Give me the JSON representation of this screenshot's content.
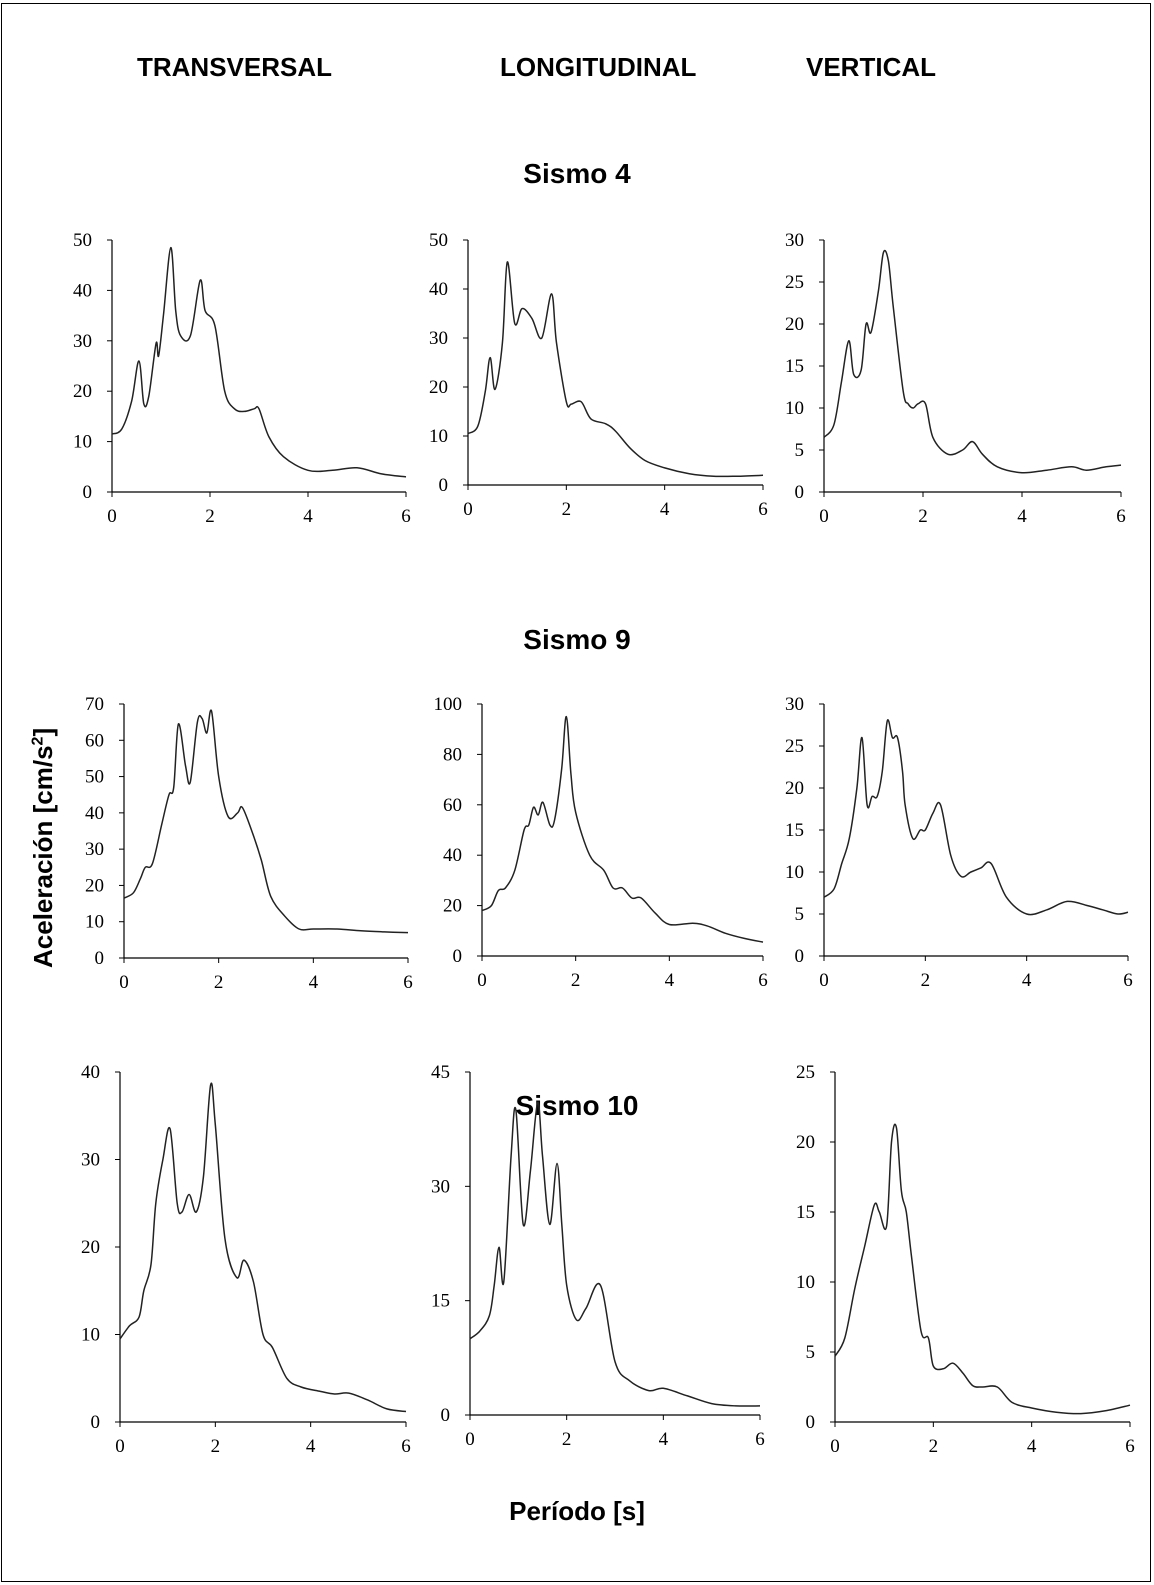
{
  "headers": {
    "col1": "TRANSVERSAL",
    "col2": "LONGITUDINAL",
    "col3": "VERTICAL"
  },
  "rows": [
    "Sismo 4",
    "Sismo 9",
    "Sismo 10"
  ],
  "ylabel_text": "Aceleración [cm/s",
  "ylabel_sup": "2",
  "ylabel_tail": "]",
  "xlabel": "Período [s]",
  "chart_data": [
    {
      "type": "line",
      "row": "Sismo 4",
      "component": "TRANSVERSAL",
      "xlim": [
        0,
        6
      ],
      "ylim": [
        0,
        50
      ],
      "yticks": [
        0,
        10,
        20,
        30,
        40,
        50
      ],
      "xticks": [
        0,
        2,
        4,
        6
      ],
      "x": [
        0,
        0.2,
        0.4,
        0.55,
        0.65,
        0.75,
        0.9,
        0.95,
        1.05,
        1.2,
        1.3,
        1.4,
        1.6,
        1.8,
        1.9,
        2.1,
        2.3,
        2.5,
        2.7,
        2.9,
        3.0,
        3.2,
        3.5,
        4.0,
        4.5,
        5.0,
        5.5,
        6.0
      ],
      "y": [
        11.5,
        12.5,
        18,
        26,
        17.5,
        19,
        29.5,
        27,
        35,
        48.5,
        36,
        31,
        31,
        42,
        36,
        33,
        20,
        16.5,
        16,
        16.5,
        16.5,
        11,
        7,
        4.3,
        4.3,
        4.8,
        3.6,
        3
      ]
    },
    {
      "type": "line",
      "row": "Sismo 4",
      "component": "LONGITUDINAL",
      "xlim": [
        0,
        6
      ],
      "ylim": [
        0,
        50
      ],
      "yticks": [
        0,
        10,
        20,
        30,
        40,
        50
      ],
      "xticks": [
        0,
        2,
        4,
        6
      ],
      "x": [
        0,
        0.2,
        0.35,
        0.45,
        0.55,
        0.7,
        0.8,
        0.95,
        1.1,
        1.3,
        1.5,
        1.7,
        1.8,
        2.0,
        2.1,
        2.3,
        2.5,
        2.8,
        3.0,
        3.3,
        3.6,
        4.0,
        4.5,
        5.0,
        5.5,
        6.0
      ],
      "y": [
        10.5,
        12,
        19,
        26,
        19.5,
        29,
        45.5,
        33,
        36,
        34,
        30,
        39,
        29,
        17,
        16.5,
        17,
        13.5,
        12.5,
        11,
        7.5,
        5,
        3.5,
        2.3,
        1.8,
        1.8,
        2
      ]
    },
    {
      "type": "line",
      "row": "Sismo 4",
      "component": "VERTICAL",
      "xlim": [
        0,
        6
      ],
      "ylim": [
        0,
        30
      ],
      "yticks": [
        0,
        5,
        10,
        15,
        20,
        25,
        30
      ],
      "xticks": [
        0,
        2,
        4,
        6
      ],
      "x": [
        0,
        0.2,
        0.35,
        0.5,
        0.6,
        0.75,
        0.85,
        0.95,
        1.1,
        1.2,
        1.3,
        1.4,
        1.6,
        1.7,
        1.8,
        1.9,
        2.05,
        2.2,
        2.5,
        2.8,
        3.0,
        3.2,
        3.5,
        4.0,
        4.5,
        5.0,
        5.3,
        5.7,
        6.0
      ],
      "y": [
        6.5,
        8,
        13,
        18,
        14,
        14.5,
        20,
        19,
        24,
        28.5,
        27.5,
        22,
        12,
        10.5,
        10,
        10.5,
        10.5,
        6.5,
        4.5,
        5,
        6,
        4.5,
        3,
        2.3,
        2.6,
        3,
        2.6,
        3,
        3.2
      ]
    },
    {
      "type": "line",
      "row": "Sismo 9",
      "component": "TRANSVERSAL",
      "xlim": [
        0,
        6
      ],
      "ylim": [
        0,
        70
      ],
      "yticks": [
        0,
        10,
        20,
        30,
        40,
        50,
        60,
        70
      ],
      "xticks": [
        0,
        2,
        4,
        6
      ],
      "x": [
        0,
        0.2,
        0.35,
        0.45,
        0.6,
        0.8,
        0.95,
        1.05,
        1.15,
        1.3,
        1.4,
        1.55,
        1.65,
        1.75,
        1.85,
        2.0,
        2.2,
        2.4,
        2.5,
        2.7,
        2.9,
        3.1,
        3.4,
        3.7,
        4.0,
        4.5,
        5.0,
        5.5,
        6.0
      ],
      "y": [
        16.5,
        18,
        22,
        25,
        26,
        37,
        45,
        47,
        64.5,
        53,
        48.5,
        65,
        66,
        62,
        68,
        50,
        39,
        40,
        41.5,
        35,
        27,
        17,
        11.5,
        8,
        8,
        8,
        7.5,
        7.2,
        7
      ]
    },
    {
      "type": "line",
      "row": "Sismo 9",
      "component": "LONGITUDINAL",
      "xlim": [
        0,
        6
      ],
      "ylim": [
        0,
        100
      ],
      "yticks": [
        0,
        20,
        40,
        60,
        80,
        100
      ],
      "xticks": [
        0,
        2,
        4,
        6
      ],
      "x": [
        0,
        0.2,
        0.35,
        0.5,
        0.7,
        0.9,
        1.0,
        1.1,
        1.2,
        1.3,
        1.45,
        1.55,
        1.7,
        1.8,
        1.9,
        2.0,
        2.3,
        2.6,
        2.8,
        3.0,
        3.2,
        3.4,
        3.7,
        4.0,
        4.5,
        4.8,
        5.2,
        5.6,
        6.0
      ],
      "y": [
        18,
        20,
        26,
        27,
        34,
        50,
        52,
        59,
        56,
        61,
        52,
        54,
        74,
        95,
        72,
        57,
        40,
        34,
        27,
        27,
        23,
        23,
        17,
        12.5,
        13,
        12,
        9,
        7,
        5.5
      ]
    },
    {
      "type": "line",
      "row": "Sismo 9",
      "component": "VERTICAL",
      "xlim": [
        0,
        6
      ],
      "ylim": [
        0,
        30
      ],
      "yticks": [
        0,
        5,
        10,
        15,
        20,
        25,
        30
      ],
      "xticks": [
        0,
        2,
        4,
        6
      ],
      "x": [
        0,
        0.2,
        0.35,
        0.5,
        0.65,
        0.75,
        0.85,
        0.95,
        1.05,
        1.15,
        1.25,
        1.35,
        1.45,
        1.55,
        1.6,
        1.75,
        1.9,
        2.0,
        2.15,
        2.3,
        2.5,
        2.7,
        2.9,
        3.1,
        3.3,
        3.6,
        4.0,
        4.4,
        4.8,
        5.2,
        5.5,
        5.8,
        6.0
      ],
      "y": [
        7,
        8,
        11,
        14,
        20,
        26,
        18,
        19,
        19,
        22,
        28,
        26,
        26,
        22,
        18,
        14,
        15,
        15,
        17,
        18,
        12,
        9.5,
        10,
        10.5,
        11,
        7,
        5,
        5.5,
        6.5,
        6,
        5.5,
        5,
        5.2
      ]
    },
    {
      "type": "line",
      "row": "Sismo 10",
      "component": "TRANSVERSAL",
      "xlim": [
        0,
        6
      ],
      "ylim": [
        0,
        40
      ],
      "yticks": [
        0,
        10,
        20,
        30,
        40
      ],
      "xticks": [
        0,
        2,
        4,
        6
      ],
      "x": [
        0,
        0.2,
        0.4,
        0.5,
        0.65,
        0.75,
        0.9,
        1.05,
        1.2,
        1.3,
        1.45,
        1.6,
        1.75,
        1.9,
        2.0,
        2.2,
        2.45,
        2.6,
        2.8,
        3.0,
        3.2,
        3.5,
        3.8,
        4.2,
        4.5,
        4.8,
        5.2,
        5.6,
        6.0
      ],
      "y": [
        9.5,
        11,
        12,
        15,
        18,
        25,
        30,
        33.5,
        25,
        24,
        26,
        24,
        28,
        38.5,
        34,
        21,
        16.5,
        18.5,
        16,
        10,
        8.5,
        5,
        4,
        3.5,
        3.2,
        3.3,
        2.5,
        1.5,
        1.2
      ]
    },
    {
      "type": "line",
      "row": "Sismo 10",
      "component": "LONGITUDINAL",
      "xlim": [
        0,
        6
      ],
      "ylim": [
        0,
        45
      ],
      "yticks": [
        0,
        15,
        30,
        45
      ],
      "xticks": [
        0,
        2,
        4,
        6
      ],
      "x": [
        0,
        0.2,
        0.4,
        0.5,
        0.6,
        0.7,
        0.85,
        0.95,
        1.1,
        1.25,
        1.4,
        1.5,
        1.65,
        1.8,
        1.9,
        2.0,
        2.2,
        2.4,
        2.7,
        3.0,
        3.3,
        3.7,
        4.0,
        4.5,
        5.0,
        5.5,
        6.0
      ],
      "y": [
        10,
        11,
        13,
        17,
        22,
        17.5,
        34,
        40,
        25,
        32,
        41,
        34,
        25,
        33,
        25,
        17,
        12.5,
        14,
        17,
        7,
        4.5,
        3.2,
        3.5,
        2.5,
        1.5,
        1.2,
        1.2
      ]
    },
    {
      "type": "line",
      "row": "Sismo 10",
      "component": "VERTICAL",
      "xlim": [
        0,
        6
      ],
      "ylim": [
        0,
        25
      ],
      "yticks": [
        0,
        5,
        10,
        15,
        20,
        25
      ],
      "xticks": [
        0,
        2,
        4,
        6
      ],
      "x": [
        0,
        0.2,
        0.4,
        0.6,
        0.8,
        0.9,
        1.05,
        1.15,
        1.25,
        1.35,
        1.45,
        1.55,
        1.75,
        1.9,
        2.0,
        2.2,
        2.4,
        2.6,
        2.8,
        3.0,
        3.3,
        3.6,
        4.0,
        4.5,
        5.0,
        5.5,
        6.0
      ],
      "y": [
        4.7,
        6,
        9.5,
        12.5,
        15.5,
        15,
        14,
        20,
        21,
        16.5,
        15,
        12,
        6.5,
        6,
        4,
        3.8,
        4.2,
        3.5,
        2.6,
        2.5,
        2.5,
        1.4,
        1,
        0.7,
        0.6,
        0.8,
        1.2
      ]
    }
  ]
}
